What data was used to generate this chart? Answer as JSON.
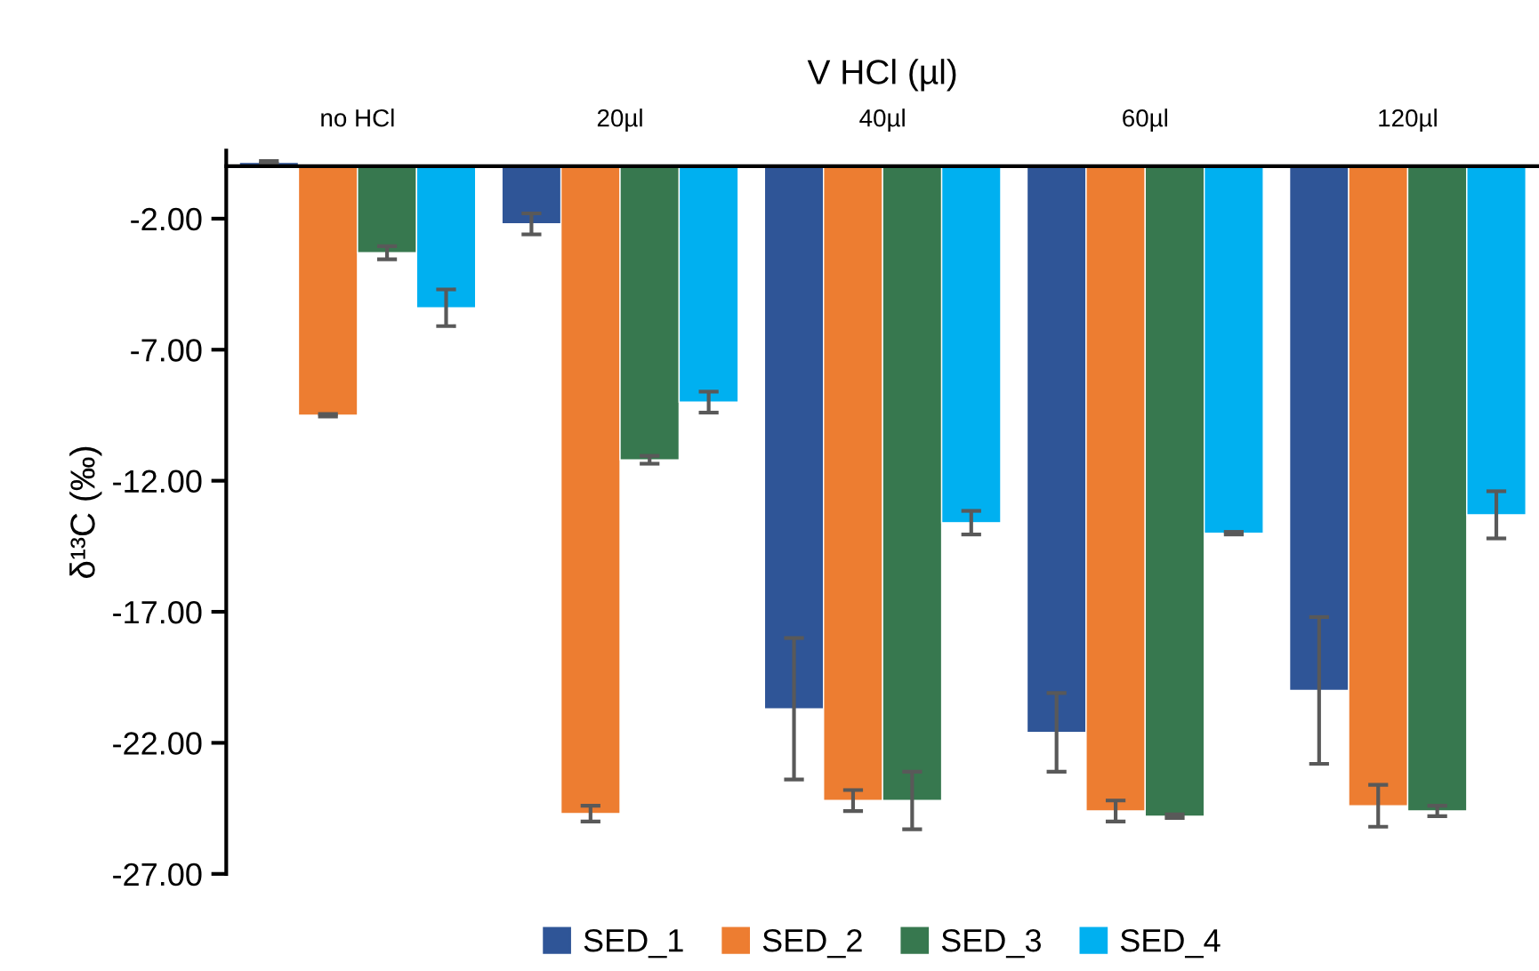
{
  "chart_data": {
    "type": "bar",
    "xlabel": "V HCl (µl)",
    "ylabel": "δ¹³C (‰)",
    "categories": [
      "no HCl",
      "20µl",
      "40µl",
      "60µl",
      "120µl"
    ],
    "ylim": [
      -27,
      0.6
    ],
    "yticks": [
      {
        "value": -2,
        "label": "-2.00"
      },
      {
        "value": -7,
        "label": "-7.00"
      },
      {
        "value": -12,
        "label": "-12.00"
      },
      {
        "value": -17,
        "label": "-17.00"
      },
      {
        "value": -22,
        "label": "-22.00"
      },
      {
        "value": -27,
        "label": "-27.00"
      }
    ],
    "grid": false,
    "legend": "bottom",
    "series": [
      {
        "name": "SED_1",
        "color": "#2f5597",
        "values": [
          0.15,
          -2.2,
          -20.7,
          -21.6,
          -20.0
        ],
        "errors": [
          0.05,
          0.4,
          2.7,
          1.5,
          2.8
        ]
      },
      {
        "name": "SED_2",
        "color": "#ed7d31",
        "values": [
          -9.5,
          -24.7,
          -24.2,
          -24.6,
          -24.4
        ],
        "errors": [
          0.05,
          0.3,
          0.4,
          0.4,
          0.8
        ]
      },
      {
        "name": "SED_3",
        "color": "#37784f",
        "values": [
          -3.3,
          -11.2,
          -24.2,
          -24.8,
          -24.6
        ],
        "errors": [
          0.25,
          0.15,
          1.1,
          0.07,
          0.2
        ]
      },
      {
        "name": "SED_4",
        "color": "#00b0f0",
        "values": [
          -5.4,
          -9.0,
          -13.6,
          -14.0,
          -13.3
        ],
        "errors": [
          0.7,
          0.4,
          0.45,
          0.05,
          0.9
        ]
      }
    ]
  }
}
